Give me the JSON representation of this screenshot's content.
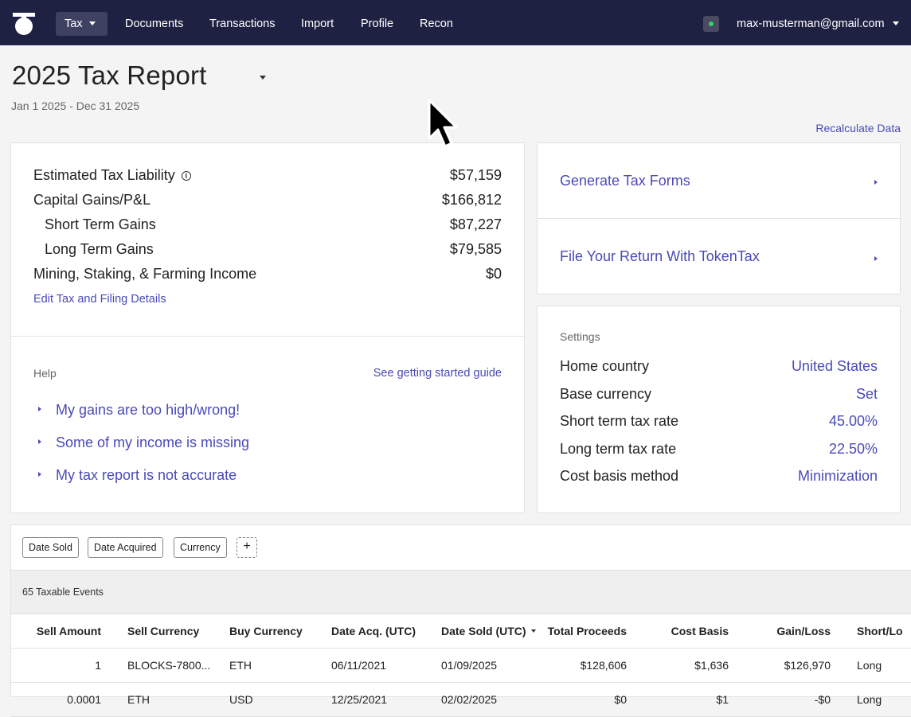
{
  "nav": {
    "tax": "Tax",
    "items": [
      "Documents",
      "Transactions",
      "Import",
      "Profile",
      "Recon"
    ],
    "user_email": "max-musterman@gmail.com"
  },
  "header": {
    "title": "2025 Tax Report",
    "date_range": "Jan 1 2025 - Dec 31 2025",
    "recalculate": "Recalculate Data"
  },
  "summary": {
    "rows": [
      {
        "label": "Estimated Tax Liability",
        "value": "$57,159"
      },
      {
        "label": "Capital Gains/P&L",
        "value": "$166,812"
      },
      {
        "label": "Short Term Gains",
        "value": "$87,227"
      },
      {
        "label": "Long Term Gains",
        "value": "$79,585"
      },
      {
        "label": "Mining, Staking, & Farming Income",
        "value": "$0"
      }
    ],
    "edit_link": "Edit Tax and Filing Details"
  },
  "help": {
    "label": "Help",
    "guide_link": "See getting started guide",
    "items": [
      "My gains are too high/wrong!",
      "Some of my income is missing",
      "My tax report is not accurate"
    ]
  },
  "actions": {
    "generate": "Generate Tax Forms",
    "file": "File Your Return With TokenTax"
  },
  "settings": {
    "label": "Settings",
    "rows": [
      {
        "label": "Home country",
        "value": "United States"
      },
      {
        "label": "Base currency",
        "value": "Set"
      },
      {
        "label": "Short term tax rate",
        "value": "45.00%"
      },
      {
        "label": "Long term tax rate",
        "value": "22.50%"
      },
      {
        "label": "Cost basis method",
        "value": "Minimization"
      }
    ]
  },
  "table": {
    "filters": [
      "Date Sold",
      "Date Acquired",
      "Currency"
    ],
    "add_filter": "+",
    "events_count": "65 Taxable Events",
    "columns": [
      "Sell Amount",
      "Sell Currency",
      "Buy Currency",
      "Date Acq. (UTC)",
      "Date Sold (UTC)",
      "Total Proceeds",
      "Cost Basis",
      "Gain/Loss",
      "Short/Lo"
    ],
    "rows": [
      [
        "1",
        "BLOCKS-7800...",
        "ETH",
        "06/11/2021",
        "01/09/2025",
        "$128,606",
        "$1,636",
        "$126,970",
        "Long"
      ],
      [
        "0.0001",
        "ETH",
        "USD",
        "12/25/2021",
        "02/02/2025",
        "$0",
        "$1",
        "-$0",
        "Long"
      ]
    ]
  },
  "colors": {
    "nav_bg": "#1f2142",
    "link": "#4a4ab8",
    "status": "#2fd36b"
  },
  "icons": [
    "logo-icon",
    "caret-down-icon",
    "info-icon",
    "chevron-right-icon",
    "status-indicator-icon",
    "mouse-cursor-icon"
  ]
}
